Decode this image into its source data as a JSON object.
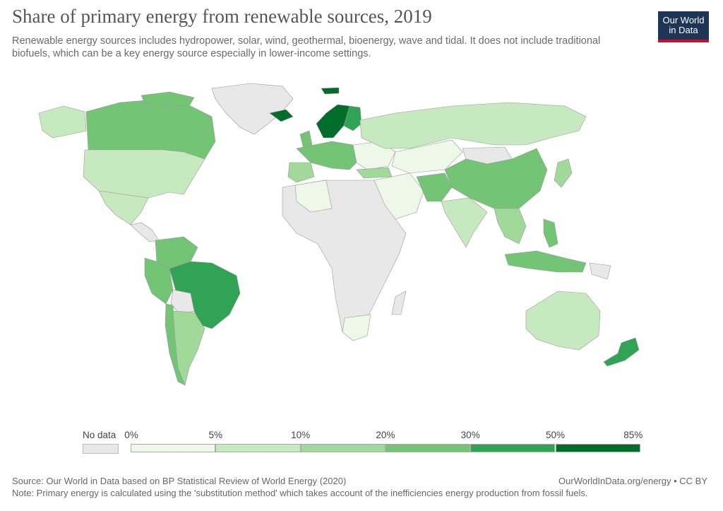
{
  "header": {
    "title": "Share of primary energy from renewable sources, 2019",
    "subtitle": "Renewable energy sources includes hydropower, solar, wind, geothermal, bioenergy, wave and tidal. It does not include traditional biofuels, which can be a key energy source especially in lower-income settings.",
    "logo_line1": "Our World",
    "logo_line2": "in Data"
  },
  "legend": {
    "no_data_label": "No data",
    "no_data_color": "#e8e8e8",
    "tick_labels": [
      "0%",
      "5%",
      "10%",
      "20%",
      "30%",
      "50%",
      "85%"
    ],
    "bin_colors": [
      "#edf8e9",
      "#c7e9c0",
      "#a1d99b",
      "#74c476",
      "#31a354",
      "#006d2c"
    ]
  },
  "footer": {
    "source": "Source: Our World in Data based on BP Statistical Review of World Energy (2020)",
    "note": "Note: Primary energy is calculated using the 'substitution method' which takes account of the inefficiencies energy production from fossil fuels.",
    "credit": "OurWorldInData.org/energy • CC BY"
  }
}
